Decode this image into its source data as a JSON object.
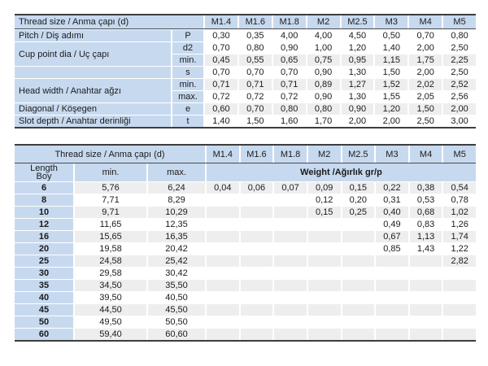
{
  "colors": {
    "header_blue": "#c7d9ef",
    "stripe_gray": "#eeeeee",
    "rule_dark": "#3d3d3d",
    "text": "#1b1b1b"
  },
  "sizes": [
    "M1.4",
    "M1.6",
    "M1.8",
    "M2",
    "M2.5",
    "M3",
    "M4",
    "M5"
  ],
  "top_table": {
    "header_label": "Thread size / Anma çapı (d)",
    "rows": [
      {
        "label": "Pitch / Diş adımı",
        "sub": "P",
        "shade": false,
        "rowspan": 1,
        "values": [
          "0,30",
          "0,35",
          "4,00",
          "4,00",
          "4,50",
          "0,50",
          "0,70",
          "0,80"
        ]
      },
      {
        "label": "Cup point dia / Uç çapı",
        "sub": "d2",
        "shade": false,
        "rowspan": 2,
        "values": [
          "0,70",
          "0,80",
          "0,90",
          "1,00",
          "1,20",
          "1,40",
          "2,00",
          "2,50"
        ]
      },
      {
        "label": null,
        "sub": "min.",
        "shade": true,
        "rowspan": 0,
        "values": [
          "0,45",
          "0,55",
          "0,65",
          "0,75",
          "0,95",
          "1,15",
          "1,75",
          "2,25"
        ]
      },
      {
        "label": "",
        "sub": "s",
        "shade": false,
        "rowspan": 1,
        "values": [
          "0,70",
          "0,70",
          "0,70",
          "0,90",
          "1,30",
          "1,50",
          "2,00",
          "2,50"
        ]
      },
      {
        "label": "Head width / Anahtar ağzı",
        "sub": "min.",
        "shade": true,
        "rowspan": 2,
        "values": [
          "0,71",
          "0,71",
          "0,71",
          "0,89",
          "1,27",
          "1,52",
          "2,02",
          "2,52"
        ]
      },
      {
        "label": null,
        "sub": "max.",
        "shade": false,
        "rowspan": 0,
        "values": [
          "0,72",
          "0,72",
          "0,72",
          "0,90",
          "1,30",
          "1,55",
          "2,05",
          "2,56"
        ]
      },
      {
        "label": "Diagonal / Köşegen",
        "sub": "e",
        "shade": true,
        "rowspan": 1,
        "values": [
          "0,60",
          "0,70",
          "0,80",
          "0,80",
          "0,90",
          "1,20",
          "1,50",
          "2,00"
        ]
      },
      {
        "label": "Slot depth / Anahtar derinliği",
        "sub": "t",
        "shade": false,
        "rowspan": 1,
        "values": [
          "1,40",
          "1,50",
          "1,60",
          "1,70",
          "2,00",
          "2,00",
          "2,50",
          "3,00"
        ]
      }
    ]
  },
  "bottom_table": {
    "header_label": "Thread size / Anma çapı (d)",
    "length_label": "Length\nBoy",
    "min_label": "min.",
    "max_label": "max.",
    "weight_label": "Weight /Ağırlık gr/p",
    "rows": [
      {
        "length": "6",
        "min": "5,76",
        "max": "6,24",
        "shade": true,
        "weights": [
          "0,04",
          "0,06",
          "0,07",
          "0,09",
          "0,15",
          "0,22",
          "0,38",
          "0,54"
        ]
      },
      {
        "length": "8",
        "min": "7,71",
        "max": "8,29",
        "shade": false,
        "weights": [
          "",
          "",
          "",
          "0,12",
          "0,20",
          "0,31",
          "0,53",
          "0,78"
        ]
      },
      {
        "length": "10",
        "min": "9,71",
        "max": "10,29",
        "shade": true,
        "weights": [
          "",
          "",
          "",
          "0,15",
          "0,25",
          "0,40",
          "0,68",
          "1,02"
        ]
      },
      {
        "length": "12",
        "min": "11,65",
        "max": "12,35",
        "shade": false,
        "weights": [
          "",
          "",
          "",
          "",
          "",
          "0,49",
          "0,83",
          "1,26"
        ]
      },
      {
        "length": "16",
        "min": "15,65",
        "max": "16,35",
        "shade": true,
        "weights": [
          "",
          "",
          "",
          "",
          "",
          "0,67",
          "1,13",
          "1,74"
        ]
      },
      {
        "length": "20",
        "min": "19,58",
        "max": "20,42",
        "shade": false,
        "weights": [
          "",
          "",
          "",
          "",
          "",
          "0,85",
          "1,43",
          "1,22"
        ]
      },
      {
        "length": "25",
        "min": "24,58",
        "max": "25,42",
        "shade": true,
        "weights": [
          "",
          "",
          "",
          "",
          "",
          "",
          "",
          "2,82"
        ]
      },
      {
        "length": "30",
        "min": "29,58",
        "max": "30,42",
        "shade": false,
        "weights": [
          "",
          "",
          "",
          "",
          "",
          "",
          "",
          ""
        ]
      },
      {
        "length": "35",
        "min": "34,50",
        "max": "35,50",
        "shade": true,
        "weights": [
          "",
          "",
          "",
          "",
          "",
          "",
          "",
          ""
        ]
      },
      {
        "length": "40",
        "min": "39,50",
        "max": "40,50",
        "shade": false,
        "weights": [
          "",
          "",
          "",
          "",
          "",
          "",
          "",
          ""
        ]
      },
      {
        "length": "45",
        "min": "44,50",
        "max": "45,50",
        "shade": true,
        "weights": [
          "",
          "",
          "",
          "",
          "",
          "",
          "",
          ""
        ]
      },
      {
        "length": "50",
        "min": "49,50",
        "max": "50,50",
        "shade": false,
        "weights": [
          "",
          "",
          "",
          "",
          "",
          "",
          "",
          ""
        ]
      },
      {
        "length": "60",
        "min": "59,40",
        "max": "60,60",
        "shade": true,
        "weights": [
          "",
          "",
          "",
          "",
          "",
          "",
          "",
          ""
        ]
      }
    ]
  }
}
